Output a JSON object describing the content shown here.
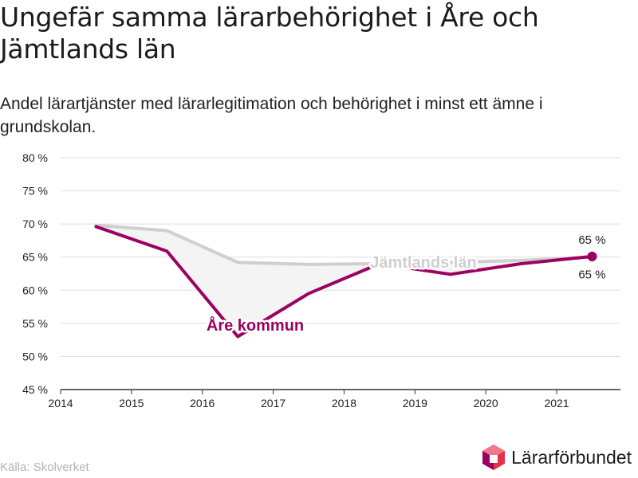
{
  "title": "Ungefär samma lärarbehörighet i Åre och Jämtlands län",
  "subtitle": "Andel lärartjänster med lärarlegitimation och behörighet i minst ett ämne i grundskolan.",
  "source": "Källa: Skolverket",
  "brand": {
    "name": "Lärarförbundet"
  },
  "colors": {
    "are": "#9c0063",
    "jamtland": "#cfcfcf",
    "fill": "#f4f4f4",
    "grid": "#dedede",
    "axis": "#333333",
    "logo_red": "#e3324a",
    "logo_purple": "#9c0063"
  },
  "chart_data": {
    "type": "line",
    "x_ticks": [
      2014,
      2015,
      2016,
      2017,
      2018,
      2019,
      2020,
      2021
    ],
    "x_ticks_label": [
      "2014",
      "2015",
      "2016",
      "2017",
      "2018",
      "2019",
      "2020",
      "2021"
    ],
    "y_ticks": [
      45,
      50,
      55,
      60,
      65,
      70,
      75,
      80
    ],
    "y_tick_labels": [
      "45 %",
      "50 %",
      "55 %",
      "60 %",
      "65 %",
      "70 %",
      "75 %",
      "80 %"
    ],
    "xlim": [
      2014,
      2021.9
    ],
    "ylim": [
      45,
      80
    ],
    "grid": true,
    "series": [
      {
        "name": "Jämtlands län",
        "x": [
          2014.5,
          2015.5,
          2016.5,
          2017.5,
          2018.5,
          2019.5,
          2020.5,
          2021.5
        ],
        "values": [
          69.8,
          69.0,
          64.2,
          63.9,
          64.0,
          64.2,
          64.5,
          65.0
        ],
        "end_label": "65 %"
      },
      {
        "name": "Åre kommun",
        "x": [
          2014.5,
          2015.5,
          2016.5,
          2017.5,
          2018.5,
          2019.5,
          2020.5,
          2021.5
        ],
        "values": [
          69.6,
          65.9,
          53.0,
          59.5,
          64.0,
          62.4,
          64.0,
          65.1
        ],
        "end_label": "65 %"
      }
    ]
  }
}
